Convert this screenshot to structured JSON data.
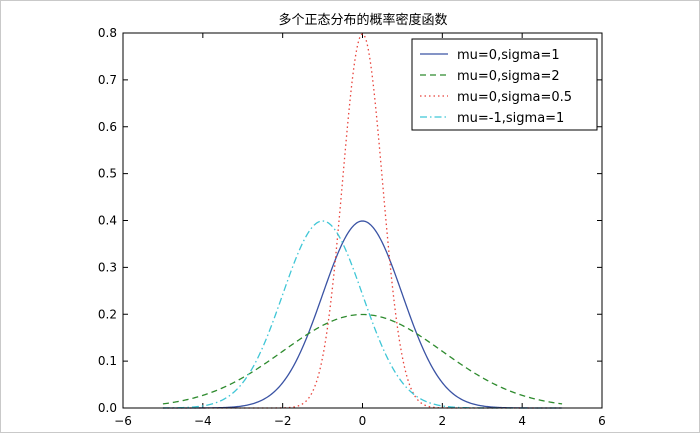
{
  "chart_data": {
    "type": "line",
    "title": "多个正态分布的概率密度函数",
    "xlim": [
      -6,
      6
    ],
    "ylim": [
      0,
      0.8
    ],
    "xticks": [
      -6,
      -4,
      -2,
      0,
      2,
      4,
      6
    ],
    "xtick_labels": [
      "−6",
      "−4",
      "−2",
      "0",
      "2",
      "4",
      "6"
    ],
    "yticks": [
      0.0,
      0.1,
      0.2,
      0.3,
      0.4,
      0.5,
      0.6,
      0.7,
      0.8
    ],
    "ytick_labels": [
      "0.0",
      "0.1",
      "0.2",
      "0.3",
      "0.4",
      "0.5",
      "0.6",
      "0.7",
      "0.8"
    ],
    "x_range": [
      -5,
      5
    ],
    "legend_position": "top-right",
    "grid": false,
    "series": [
      {
        "name": "mu=0,sigma=1",
        "mu": 0,
        "sigma": 1,
        "color": "#3a53a4",
        "style": "solid"
      },
      {
        "name": "mu=0,sigma=2",
        "mu": 0,
        "sigma": 2,
        "color": "#2e8b2e",
        "style": "dashed"
      },
      {
        "name": "mu=0,sigma=0.5",
        "mu": 0,
        "sigma": 0.5,
        "color": "#e8423a",
        "style": "dotted"
      },
      {
        "name": "mu=-1,sigma=1",
        "mu": -1,
        "sigma": 1,
        "color": "#3fc6d6",
        "style": "dashdot"
      }
    ]
  }
}
